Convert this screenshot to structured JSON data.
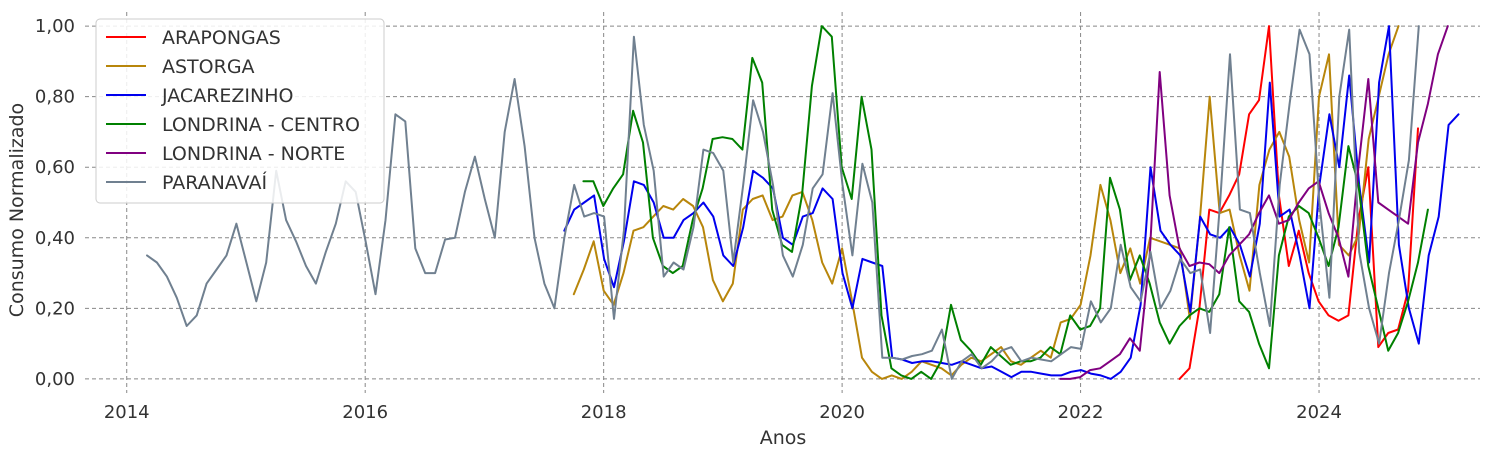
{
  "chart_data": {
    "type": "line",
    "xlabel": "Anos",
    "ylabel": "Consumo Normalizado",
    "xlim": [
      2013.65,
      2025.35
    ],
    "ylim": [
      -0.04,
      1.04
    ],
    "x_ticks": [
      2014,
      2016,
      2018,
      2020,
      2022,
      2024
    ],
    "x_tick_labels": [
      "2014",
      "2016",
      "2018",
      "2020",
      "2022",
      "2024"
    ],
    "y_ticks": [
      0,
      0.2,
      0.4,
      0.6,
      0.8,
      1.0
    ],
    "y_tick_labels": [
      "0,00",
      "0,20",
      "0,40",
      "0,60",
      "0,80",
      "1,00"
    ],
    "grid": true,
    "legend_position": "top-left",
    "series": [
      {
        "name": "ARAPONGAS",
        "color": "#ff0000",
        "start": 2022.83,
        "values": [
          0.0,
          0.03,
          0.2,
          0.48,
          0.47,
          0.52,
          0.58,
          0.75,
          0.79,
          1.0,
          0.52,
          0.32,
          0.42,
          0.3,
          0.22,
          0.18,
          0.165,
          0.18,
          0.45,
          0.6,
          0.09,
          0.13,
          0.14,
          0.25,
          0.71
        ]
      },
      {
        "name": "ASTORGA",
        "color": "#b8860b",
        "start": 2017.75,
        "values": [
          0.24,
          0.31,
          0.39,
          0.25,
          0.21,
          0.3,
          0.42,
          0.43,
          0.46,
          0.49,
          0.48,
          0.51,
          0.49,
          0.43,
          0.28,
          0.22,
          0.27,
          0.48,
          0.51,
          0.52,
          0.45,
          0.46,
          0.52,
          0.53,
          0.45,
          0.33,
          0.27,
          0.37,
          0.22,
          0.06,
          0.02,
          0.0,
          0.01,
          0.0,
          0.02,
          0.05,
          0.04,
          0.03,
          0.01,
          0.04,
          0.06,
          0.05,
          0.07,
          0.09,
          0.05,
          0.04,
          0.06,
          0.08,
          0.06,
          0.16,
          0.17,
          0.21,
          0.35,
          0.55,
          0.45,
          0.3,
          0.37,
          0.27,
          0.4,
          0.39,
          0.38,
          0.37,
          0.17,
          0.45,
          0.8,
          0.47,
          0.48,
          0.35,
          0.25,
          0.55,
          0.65,
          0.7,
          0.63,
          0.45,
          0.33,
          0.8,
          0.92,
          0.38,
          0.35,
          0.41,
          0.68,
          0.8,
          0.92,
          1.0
        ]
      },
      {
        "name": "JACAREZINHO",
        "color": "#0000ee",
        "start": 2017.67,
        "values": [
          0.42,
          0.48,
          0.5,
          0.52,
          0.34,
          0.26,
          0.39,
          0.56,
          0.55,
          0.5,
          0.4,
          0.4,
          0.45,
          0.47,
          0.5,
          0.46,
          0.35,
          0.32,
          0.43,
          0.59,
          0.57,
          0.54,
          0.4,
          0.38,
          0.46,
          0.47,
          0.54,
          0.51,
          0.3,
          0.2,
          0.34,
          0.33,
          0.32,
          0.06,
          0.055,
          0.045,
          0.05,
          0.05,
          0.045,
          0.04,
          0.05,
          0.04,
          0.03,
          0.035,
          0.02,
          0.005,
          0.02,
          0.02,
          0.015,
          0.01,
          0.01,
          0.02,
          0.025,
          0.015,
          0.01,
          0.0,
          0.02,
          0.06,
          0.21,
          0.6,
          0.42,
          0.38,
          0.35,
          0.19,
          0.46,
          0.41,
          0.4,
          0.43,
          0.38,
          0.29,
          0.44,
          0.84,
          0.46,
          0.48,
          0.35,
          0.2,
          0.55,
          0.75,
          0.6,
          0.86,
          0.55,
          0.33,
          0.84,
          1.0,
          0.38,
          0.2,
          0.1,
          0.35,
          0.46,
          0.72,
          0.75
        ]
      },
      {
        "name": "LONDRINA - CENTRO",
        "color": "#008000",
        "start": 2017.83,
        "values": [
          0.56,
          0.56,
          0.49,
          0.54,
          0.58,
          0.76,
          0.67,
          0.4,
          0.32,
          0.3,
          0.32,
          0.45,
          0.54,
          0.68,
          0.685,
          0.68,
          0.65,
          0.91,
          0.84,
          0.48,
          0.38,
          0.36,
          0.52,
          0.83,
          1.0,
          0.97,
          0.6,
          0.51,
          0.8,
          0.65,
          0.18,
          0.03,
          0.01,
          0.0,
          0.02,
          0.0,
          0.05,
          0.21,
          0.11,
          0.08,
          0.04,
          0.09,
          0.065,
          0.04,
          0.05,
          0.05,
          0.06,
          0.09,
          0.07,
          0.18,
          0.14,
          0.15,
          0.2,
          0.57,
          0.48,
          0.28,
          0.35,
          0.27,
          0.16,
          0.1,
          0.15,
          0.18,
          0.2,
          0.19,
          0.24,
          0.43,
          0.22,
          0.19,
          0.1,
          0.03,
          0.35,
          0.46,
          0.49,
          0.47,
          0.4,
          0.32,
          0.43,
          0.66,
          0.55,
          0.32,
          0.2,
          0.08,
          0.13,
          0.22,
          0.33,
          0.48
        ]
      },
      {
        "name": "LONDRINA - NORTE",
        "color": "#800080",
        "start": 2021.83,
        "values": [
          0.0,
          0.0,
          0.005,
          0.025,
          0.03,
          0.05,
          0.07,
          0.115,
          0.08,
          0.35,
          0.87,
          0.52,
          0.37,
          0.32,
          0.33,
          0.325,
          0.3,
          0.35,
          0.38,
          0.41,
          0.47,
          0.52,
          0.44,
          0.45,
          0.5,
          0.54,
          0.56,
          0.47,
          0.4,
          0.29,
          0.6,
          0.85,
          0.5,
          0.48,
          0.46,
          0.44,
          0.67,
          0.78,
          0.92,
          1.0
        ]
      },
      {
        "name": "PARANAVAÍ",
        "color": "#708090",
        "start": 2014.17,
        "values": [
          0.35,
          0.33,
          0.29,
          0.23,
          0.15,
          0.18,
          0.27,
          0.31,
          0.35,
          0.44,
          0.33,
          0.22,
          0.33,
          0.59,
          0.45,
          0.39,
          0.32,
          0.27,
          0.36,
          0.44,
          0.56,
          0.53,
          0.39,
          0.24,
          0.45,
          0.75,
          0.73,
          0.37,
          0.3,
          0.3,
          0.395,
          0.4,
          0.53,
          0.63,
          0.51,
          0.4,
          0.7,
          0.85,
          0.66,
          0.4,
          0.27,
          0.2,
          0.4,
          0.55,
          0.46,
          0.47,
          0.46,
          0.17,
          0.42,
          0.97,
          0.72,
          0.59,
          0.29,
          0.33,
          0.31,
          0.43,
          0.65,
          0.64,
          0.59,
          0.33,
          0.55,
          0.79,
          0.7,
          0.55,
          0.35,
          0.29,
          0.38,
          0.54,
          0.58,
          0.81,
          0.55,
          0.35,
          0.61,
          0.5,
          0.06,
          0.06,
          0.055,
          0.065,
          0.07,
          0.08,
          0.14,
          0.0,
          0.05,
          0.07,
          0.03,
          0.05,
          0.08,
          0.09,
          0.05,
          0.06,
          0.055,
          0.05,
          0.07,
          0.09,
          0.085,
          0.22,
          0.16,
          0.2,
          0.38,
          0.26,
          0.22,
          0.36,
          0.2,
          0.25,
          0.34,
          0.3,
          0.31,
          0.13,
          0.5,
          0.92,
          0.48,
          0.47,
          0.3,
          0.15,
          0.55,
          0.78,
          0.99,
          0.92,
          0.5,
          0.23,
          0.8,
          0.99,
          0.36,
          0.2,
          0.1,
          0.3,
          0.45,
          0.62,
          1.0
        ]
      }
    ]
  }
}
